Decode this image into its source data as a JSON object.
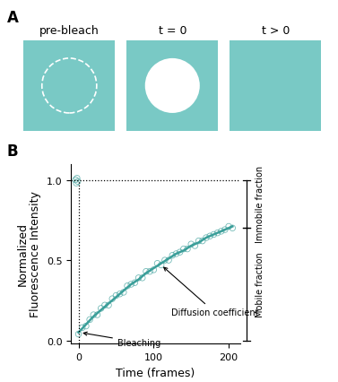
{
  "panel_a": {
    "label": "A",
    "color": "#79c9c5",
    "frames": [
      "pre-bleach",
      "t = 0",
      "t > 0"
    ]
  },
  "chart_data": {
    "type": "scatter",
    "panel_label": "B",
    "x_label": "Time (frames)",
    "y_label": "Normalized\nFluorescence Intensity",
    "color": "#3a9e99",
    "marker": "o",
    "line_style": "solid",
    "points": {
      "x": [
        -4,
        -3,
        -2,
        -1,
        0,
        5,
        10,
        15,
        20,
        25,
        30,
        35,
        40,
        45,
        50,
        55,
        60,
        65,
        70,
        75,
        80,
        85,
        90,
        95,
        100,
        105,
        110,
        115,
        120,
        125,
        130,
        135,
        140,
        145,
        150,
        155,
        160,
        165,
        170,
        175,
        180,
        185,
        190,
        195,
        200,
        205
      ],
      "y": [
        1.0,
        0.98,
        1.01,
        0.99,
        0.04,
        0.08,
        0.09,
        0.13,
        0.16,
        0.16,
        0.2,
        0.22,
        0.22,
        0.26,
        0.28,
        0.29,
        0.3,
        0.34,
        0.35,
        0.36,
        0.39,
        0.39,
        0.43,
        0.43,
        0.44,
        0.48,
        0.47,
        0.5,
        0.5,
        0.53,
        0.54,
        0.55,
        0.57,
        0.57,
        0.6,
        0.59,
        0.62,
        0.62,
        0.64,
        0.65,
        0.66,
        0.67,
        0.68,
        0.69,
        0.71,
        0.7
      ]
    },
    "fit": {
      "x": [
        0,
        10,
        20,
        30,
        40,
        50,
        60,
        70,
        80,
        90,
        100,
        110,
        120,
        130,
        140,
        150,
        160,
        170,
        180,
        190,
        200,
        205
      ],
      "y": [
        0.05,
        0.1,
        0.15,
        0.19,
        0.23,
        0.27,
        0.31,
        0.35,
        0.38,
        0.42,
        0.45,
        0.48,
        0.51,
        0.54,
        0.56,
        0.59,
        0.61,
        0.64,
        0.66,
        0.68,
        0.7,
        0.71
      ]
    },
    "bleach_frame": 0,
    "fractions": [
      {
        "label": "Immobile fraction",
        "from": 1.0,
        "to": 0.7
      },
      {
        "label": "Mobile fraction",
        "from": 0.7,
        "to": 0.0
      }
    ],
    "annotations": [
      {
        "text": "Bleaching",
        "x": 2,
        "y": 0.05
      },
      {
        "text": "Diffusion coefficient",
        "x": 110,
        "y": 0.47
      }
    ],
    "xlim": [
      -10,
      215
    ],
    "xticks": [
      0,
      100,
      200
    ],
    "ylim": [
      -0.02,
      1.1
    ],
    "yticks": [
      0.0,
      0.5,
      1.0
    ],
    "grid": false
  }
}
